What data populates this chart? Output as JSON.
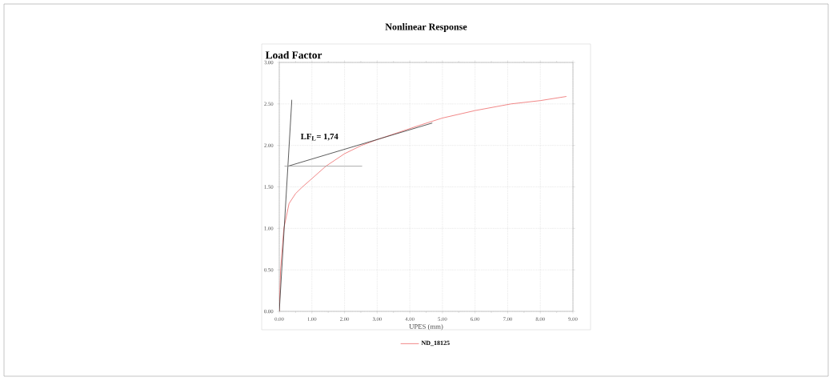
{
  "chart_data": {
    "type": "line",
    "title": "Nonlinear Response",
    "ylabel": "Load Factor",
    "xlabel": "UPES (mm)",
    "xlim": [
      0,
      9
    ],
    "ylim": [
      0,
      3
    ],
    "xticks": [
      {
        "value": 0,
        "label": "0.00"
      },
      {
        "value": 1,
        "label": "1.00"
      },
      {
        "value": 2,
        "label": "2.00"
      },
      {
        "value": 3,
        "label": "3.00"
      },
      {
        "value": 4,
        "label": "4.00"
      },
      {
        "value": 5,
        "label": "5.00"
      },
      {
        "value": 6,
        "label": "6.00"
      },
      {
        "value": 7,
        "label": "7.00"
      },
      {
        "value": 8,
        "label": "8.00"
      },
      {
        "value": 9,
        "label": "9.00"
      }
    ],
    "yticks": [
      {
        "value": 0,
        "label": "0.00"
      },
      {
        "value": 0.5,
        "label": "0.50"
      },
      {
        "value": 1,
        "label": "1.00"
      },
      {
        "value": 1.5,
        "label": "1.50"
      },
      {
        "value": 2,
        "label": "2.00"
      },
      {
        "value": 2.5,
        "label": "2.50"
      },
      {
        "value": 3,
        "label": "3.00"
      }
    ],
    "grid": true,
    "legend": "bottom",
    "series": [
      {
        "name": "ND_18125",
        "color": "#ee6a6a",
        "x": [
          0,
          0.04,
          0.14,
          0.3,
          0.5,
          0.71,
          1.0,
          1.43,
          2.0,
          2.52,
          3.0,
          4.36,
          5.0,
          6.0,
          7.1,
          8.0,
          8.8
        ],
        "values": [
          0,
          0.5,
          1.0,
          1.3,
          1.42,
          1.5,
          1.6,
          1.75,
          1.9,
          2.0,
          2.07,
          2.25,
          2.33,
          2.42,
          2.5,
          2.54,
          2.59
        ]
      },
      {
        "color": "#333333",
        "x": [
          0,
          0.385
        ],
        "values": [
          0,
          2.55
        ]
      },
      {
        "color": "#333333",
        "x": [
          0.27,
          4.69
        ],
        "values": [
          1.75,
          2.27
        ]
      },
      {
        "color": "#999999",
        "x": [
          0.16,
          2.54
        ],
        "values": [
          1.75,
          1.75
        ]
      }
    ],
    "annotations": [
      "LF$_{L}$= 1,74"
    ]
  }
}
